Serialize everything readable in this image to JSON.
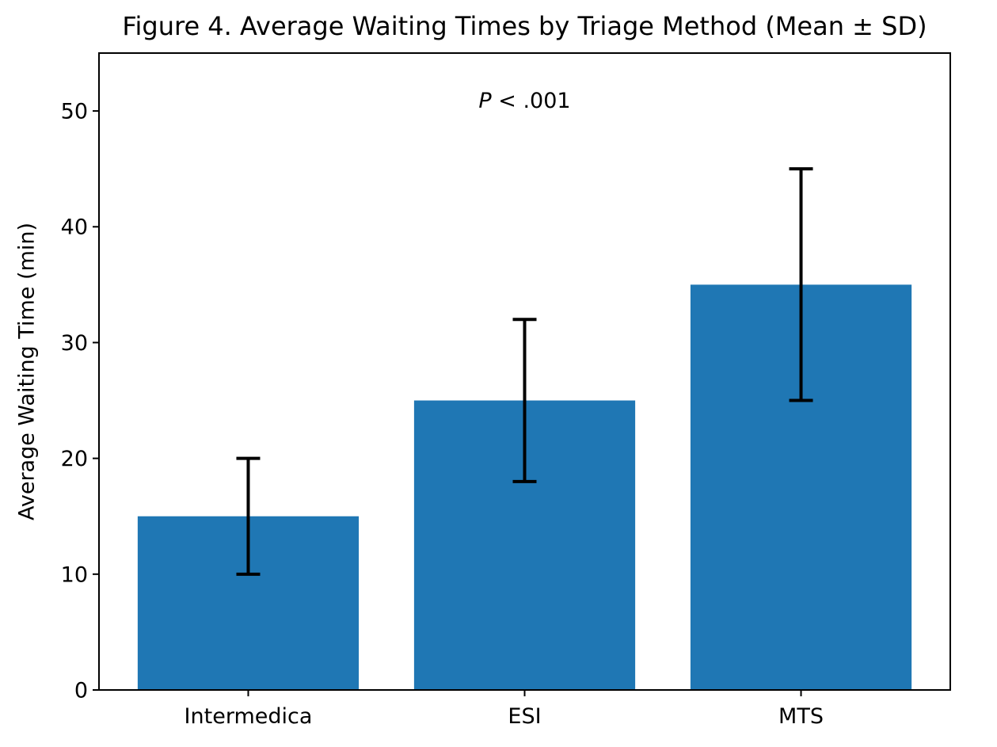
{
  "chart_data": {
    "type": "bar",
    "title": "Figure 4. Average Waiting Times by Triage Method (Mean ± SD)",
    "xlabel": "",
    "ylabel": "Average Waiting Time (min)",
    "categories": [
      "Intermedica",
      "ESI",
      "MTS"
    ],
    "values": [
      15,
      25,
      35
    ],
    "errors": [
      5,
      7,
      10
    ],
    "error_low": [
      10,
      18,
      25
    ],
    "error_high": [
      20,
      32,
      45
    ],
    "yticks": [
      0,
      10,
      20,
      30,
      40,
      50
    ],
    "ylim": [
      0,
      55
    ],
    "annotation": {
      "p_symbol": "P",
      "rest": " < .001"
    },
    "bar_color": "#1f77b4",
    "error_bar_color": "#000000",
    "axis_color": "#000000",
    "grid": false,
    "legend_position": "none"
  }
}
